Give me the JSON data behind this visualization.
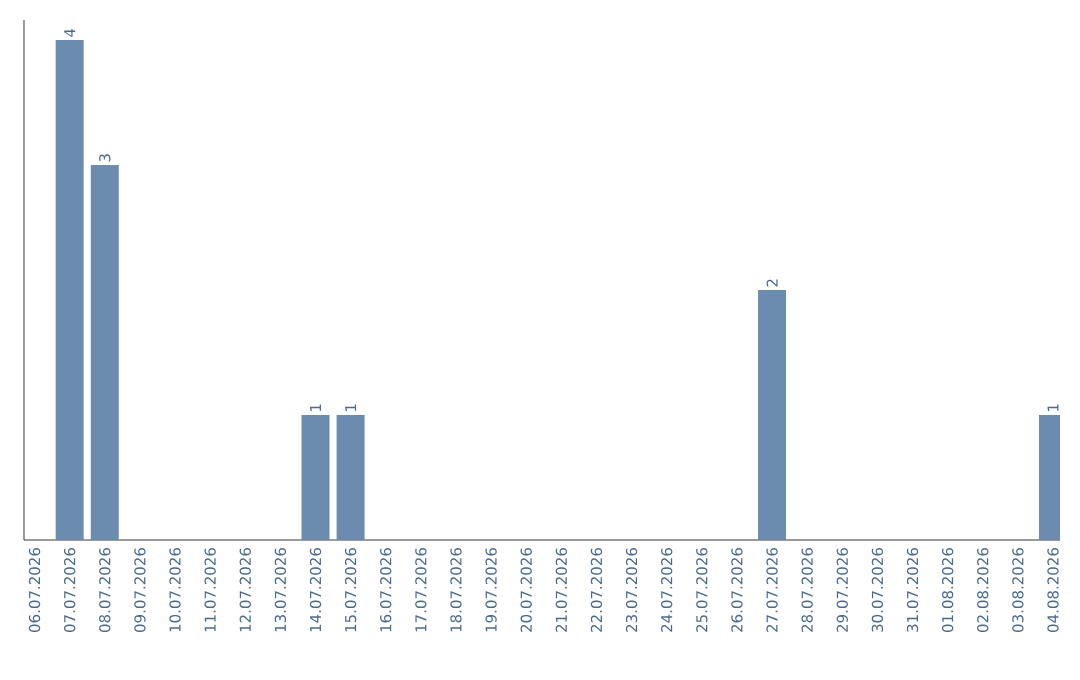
{
  "chart_data": {
    "type": "bar",
    "categories": [
      "06.07.2026",
      "07.07.2026",
      "08.07.2026",
      "09.07.2026",
      "10.07.2026",
      "11.07.2026",
      "12.07.2026",
      "13.07.2026",
      "14.07.2026",
      "15.07.2026",
      "16.07.2026",
      "17.07.2026",
      "18.07.2026",
      "19.07.2026",
      "20.07.2026",
      "21.07.2026",
      "22.07.2026",
      "23.07.2026",
      "24.07.2026",
      "25.07.2026",
      "26.07.2026",
      "27.07.2026",
      "28.07.2026",
      "29.07.2026",
      "30.07.2026",
      "31.07.2026",
      "01.08.2026",
      "02.08.2026",
      "03.08.2026",
      "04.08.2026"
    ],
    "values": [
      0,
      4,
      3,
      0,
      0,
      0,
      0,
      0,
      1,
      1,
      0,
      0,
      0,
      0,
      0,
      0,
      0,
      0,
      0,
      0,
      0,
      2,
      0,
      0,
      0,
      0,
      0,
      0,
      0,
      1
    ],
    "value_labels": [
      null,
      "4",
      "3",
      null,
      null,
      null,
      null,
      null,
      "1",
      "1",
      null,
      null,
      null,
      null,
      null,
      null,
      null,
      null,
      null,
      null,
      null,
      "2",
      null,
      null,
      null,
      null,
      null,
      null,
      null,
      "1"
    ],
    "color": "#6b8cae",
    "grid": false,
    "tick_labels": "x"
  }
}
